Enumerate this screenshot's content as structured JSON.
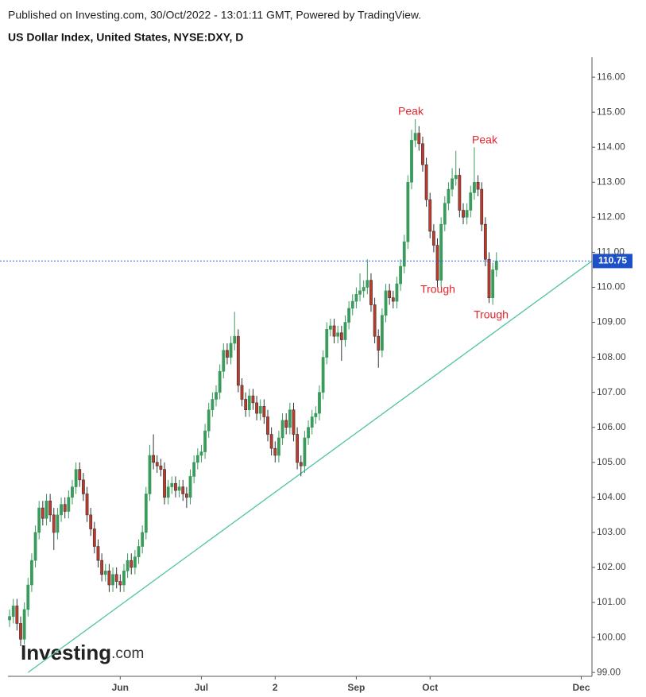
{
  "header": "Published on Investing.com, 30/Oct/2022 - 13:01:11 GMT, Powered by TradingView.",
  "logo": {
    "brand": "Investing",
    "suffix": ".com"
  },
  "chart_data": {
    "type": "candlestick",
    "title": "US Dollar Index, United States, NYSE:DXY, D",
    "up_color": "#3a9b5c",
    "down_color": "#c0392b",
    "ylim": [
      98.89,
      116.57
    ],
    "yticks": [
      {
        "value": 99,
        "label": "99.00"
      },
      {
        "value": 100,
        "label": "100.00"
      },
      {
        "value": 101,
        "label": "101.00"
      },
      {
        "value": 102,
        "label": "102.00"
      },
      {
        "value": 103,
        "label": "103.00"
      },
      {
        "value": 104,
        "label": "104.00"
      },
      {
        "value": 105,
        "label": "105.00"
      },
      {
        "value": 106,
        "label": "106.00"
      },
      {
        "value": 107,
        "label": "107.00"
      },
      {
        "value": 108,
        "label": "108.00"
      },
      {
        "value": 109,
        "label": "109.00"
      },
      {
        "value": 110,
        "label": "110.00"
      },
      {
        "value": 111,
        "label": "111.00"
      },
      {
        "value": 112,
        "label": "112.00"
      },
      {
        "value": 113,
        "label": "113.00"
      },
      {
        "value": 114,
        "label": "114.00"
      },
      {
        "value": 115,
        "label": "115.00"
      },
      {
        "value": 116,
        "label": "116.00"
      }
    ],
    "xlim": [
      -2.6,
      157.9
    ],
    "xticks": [
      {
        "value": 30,
        "label": "Jun"
      },
      {
        "value": 52,
        "label": "Jul"
      },
      {
        "value": 72,
        "label": "2"
      },
      {
        "value": 94,
        "label": "Sep"
      },
      {
        "value": 114,
        "label": "Oct"
      },
      {
        "value": 155,
        "label": "Dec"
      }
    ],
    "last_price": 110.75,
    "trendline": {
      "x": [
        5,
        157.9
      ],
      "y": [
        99,
        110.75
      ],
      "color": "#4fc3a1"
    },
    "annotations": [
      "Peak",
      "Peak",
      "Trough",
      "Trough"
    ],
    "ohlc": [
      [
        100.5,
        100.8,
        100.3,
        100.6
      ],
      [
        100.6,
        101.1,
        100.4,
        100.9
      ],
      [
        100.9,
        101.1,
        100.2,
        100.4
      ],
      [
        100.4,
        100.6,
        99.75,
        99.95
      ],
      [
        99.95,
        101.0,
        99.8,
        100.8
      ],
      [
        100.8,
        101.7,
        100.6,
        101.5
      ],
      [
        101.5,
        102.4,
        101.3,
        102.2
      ],
      [
        102.2,
        103.2,
        102.0,
        103.0
      ],
      [
        103.0,
        103.9,
        102.8,
        103.7
      ],
      [
        103.7,
        103.9,
        103.2,
        103.4
      ],
      [
        103.4,
        104.1,
        103.2,
        103.9
      ],
      [
        103.9,
        104.1,
        103.3,
        103.5
      ],
      [
        103.5,
        103.7,
        102.5,
        103.0
      ],
      [
        103.0,
        103.7,
        102.8,
        103.5
      ],
      [
        103.5,
        104.0,
        103.3,
        103.8
      ],
      [
        103.8,
        104.0,
        103.4,
        103.6
      ],
      [
        103.6,
        104.2,
        103.4,
        104.0
      ],
      [
        104.0,
        104.5,
        103.8,
        104.3
      ],
      [
        104.3,
        105.0,
        104.1,
        104.8
      ],
      [
        104.8,
        105.0,
        104.3,
        104.5
      ],
      [
        104.5,
        104.7,
        103.9,
        104.1
      ],
      [
        104.1,
        104.3,
        103.3,
        103.5
      ],
      [
        103.5,
        103.7,
        102.9,
        103.1
      ],
      [
        103.1,
        103.3,
        102.4,
        102.6
      ],
      [
        102.6,
        102.8,
        102.0,
        102.2
      ],
      [
        102.2,
        102.4,
        101.6,
        101.8
      ],
      [
        101.8,
        102.1,
        101.6,
        101.9
      ],
      [
        101.9,
        102.1,
        101.3,
        101.5
      ],
      [
        101.5,
        102.0,
        101.3,
        101.8
      ],
      [
        101.8,
        102.0,
        101.4,
        101.6
      ],
      [
        101.6,
        101.8,
        101.3,
        101.5
      ],
      [
        101.5,
        102.1,
        101.3,
        101.9
      ],
      [
        101.9,
        102.4,
        101.7,
        102.2
      ],
      [
        102.2,
        102.4,
        101.8,
        102.0
      ],
      [
        102.0,
        102.5,
        101.8,
        102.3
      ],
      [
        102.3,
        102.8,
        102.1,
        102.6
      ],
      [
        102.6,
        103.2,
        102.4,
        103.0
      ],
      [
        103.0,
        104.3,
        102.8,
        104.1
      ],
      [
        104.1,
        105.5,
        103.9,
        105.2
      ],
      [
        105.2,
        105.8,
        104.8,
        105.0
      ],
      [
        105.0,
        105.2,
        104.7,
        104.9
      ],
      [
        104.9,
        105.1,
        104.6,
        104.8
      ],
      [
        104.8,
        105.0,
        103.8,
        104.0
      ],
      [
        104.0,
        104.5,
        103.8,
        104.3
      ],
      [
        104.3,
        104.6,
        104.1,
        104.4
      ],
      [
        104.4,
        104.6,
        104.0,
        104.2
      ],
      [
        104.2,
        104.5,
        104.0,
        104.3
      ],
      [
        104.3,
        104.5,
        103.9,
        104.1
      ],
      [
        104.1,
        104.3,
        103.7,
        104.0
      ],
      [
        104.0,
        104.8,
        103.8,
        104.6
      ],
      [
        104.6,
        105.2,
        104.4,
        105.0
      ],
      [
        105.0,
        105.4,
        104.8,
        105.2
      ],
      [
        105.2,
        105.5,
        105.0,
        105.3
      ],
      [
        105.3,
        106.1,
        105.1,
        105.9
      ],
      [
        105.9,
        106.7,
        105.7,
        106.5
      ],
      [
        106.5,
        107.0,
        106.3,
        106.8
      ],
      [
        106.8,
        107.2,
        106.6,
        107.0
      ],
      [
        107.0,
        107.8,
        106.8,
        107.6
      ],
      [
        107.6,
        108.4,
        107.4,
        108.2
      ],
      [
        108.2,
        108.4,
        107.8,
        108.0
      ],
      [
        108.0,
        108.6,
        107.8,
        108.4
      ],
      [
        108.4,
        109.3,
        108.2,
        108.6
      ],
      [
        108.6,
        108.8,
        107.0,
        107.2
      ],
      [
        107.2,
        107.4,
        106.6,
        106.8
      ],
      [
        106.8,
        107.0,
        106.3,
        106.5
      ],
      [
        106.5,
        107.1,
        106.3,
        106.9
      ],
      [
        106.9,
        107.1,
        106.5,
        106.7
      ],
      [
        106.7,
        106.9,
        106.2,
        106.4
      ],
      [
        106.4,
        106.8,
        106.2,
        106.6
      ],
      [
        106.6,
        106.8,
        106.1,
        106.3
      ],
      [
        106.3,
        106.5,
        105.6,
        105.8
      ],
      [
        105.8,
        106.0,
        105.2,
        105.4
      ],
      [
        105.4,
        105.6,
        105.0,
        105.2
      ],
      [
        105.2,
        105.9,
        105.0,
        105.7
      ],
      [
        105.7,
        106.4,
        105.5,
        106.2
      ],
      [
        106.2,
        106.4,
        105.8,
        106.0
      ],
      [
        106.0,
        106.7,
        105.8,
        106.5
      ],
      [
        106.5,
        106.7,
        105.6,
        105.8
      ],
      [
        105.8,
        106.0,
        104.8,
        105.0
      ],
      [
        105.0,
        105.2,
        104.6,
        104.9
      ],
      [
        104.9,
        105.9,
        104.7,
        105.7
      ],
      [
        105.7,
        106.2,
        105.5,
        106.0
      ],
      [
        106.0,
        106.5,
        105.8,
        106.3
      ],
      [
        106.3,
        106.6,
        106.1,
        106.4
      ],
      [
        106.4,
        107.2,
        106.2,
        107.0
      ],
      [
        107.0,
        108.2,
        106.8,
        108.0
      ],
      [
        108.0,
        109.0,
        107.8,
        108.8
      ],
      [
        108.8,
        109.1,
        108.6,
        108.9
      ],
      [
        108.9,
        109.1,
        108.4,
        108.6
      ],
      [
        108.6,
        108.9,
        108.4,
        108.7
      ],
      [
        108.7,
        108.9,
        107.9,
        108.5
      ],
      [
        108.5,
        109.2,
        108.3,
        109.0
      ],
      [
        109.0,
        109.6,
        108.8,
        109.4
      ],
      [
        109.4,
        109.8,
        109.2,
        109.6
      ],
      [
        109.6,
        110.0,
        109.4,
        109.8
      ],
      [
        109.8,
        110.4,
        109.6,
        109.9
      ],
      [
        109.9,
        110.2,
        109.7,
        110.0
      ],
      [
        110.0,
        110.8,
        109.8,
        110.2
      ],
      [
        110.2,
        110.4,
        109.3,
        109.5
      ],
      [
        109.5,
        109.7,
        108.4,
        108.6
      ],
      [
        108.6,
        108.8,
        107.7,
        108.2
      ],
      [
        108.2,
        109.4,
        108.0,
        109.2
      ],
      [
        109.2,
        110.1,
        109.0,
        109.9
      ],
      [
        109.9,
        110.1,
        109.5,
        109.7
      ],
      [
        109.7,
        109.9,
        109.4,
        109.6
      ],
      [
        109.6,
        110.3,
        109.4,
        110.1
      ],
      [
        110.1,
        110.8,
        109.9,
        110.6
      ],
      [
        110.6,
        111.5,
        110.4,
        111.3
      ],
      [
        111.3,
        113.2,
        111.1,
        113.0
      ],
      [
        113.0,
        114.5,
        112.8,
        114.2
      ],
      [
        114.2,
        114.8,
        114.0,
        114.4
      ],
      [
        114.4,
        114.6,
        113.9,
        114.1
      ],
      [
        114.1,
        114.3,
        113.3,
        113.5
      ],
      [
        113.5,
        113.7,
        112.3,
        112.5
      ],
      [
        112.5,
        112.7,
        111.4,
        111.6
      ],
      [
        111.6,
        111.8,
        111.0,
        111.2
      ],
      [
        111.2,
        111.4,
        110.0,
        110.2
      ],
      [
        110.2,
        112.0,
        110.0,
        111.8
      ],
      [
        111.8,
        112.6,
        111.6,
        112.4
      ],
      [
        112.4,
        113.0,
        112.2,
        112.8
      ],
      [
        112.8,
        113.4,
        112.6,
        113.1
      ],
      [
        113.1,
        113.9,
        112.9,
        113.2
      ],
      [
        113.2,
        113.4,
        112.0,
        112.2
      ],
      [
        112.2,
        112.4,
        111.8,
        112.0
      ],
      [
        112.0,
        112.4,
        111.8,
        112.2
      ],
      [
        112.2,
        112.9,
        112.0,
        112.7
      ],
      [
        112.7,
        114.0,
        112.5,
        113.0
      ],
      [
        113.0,
        113.2,
        112.6,
        112.8
      ],
      [
        112.8,
        113.0,
        111.6,
        111.8
      ],
      [
        111.8,
        112.0,
        110.6,
        110.8
      ],
      [
        110.8,
        111.0,
        109.55,
        109.7
      ],
      [
        109.7,
        110.7,
        109.5,
        110.5
      ],
      [
        110.5,
        111.0,
        110.3,
        110.75
      ]
    ]
  }
}
